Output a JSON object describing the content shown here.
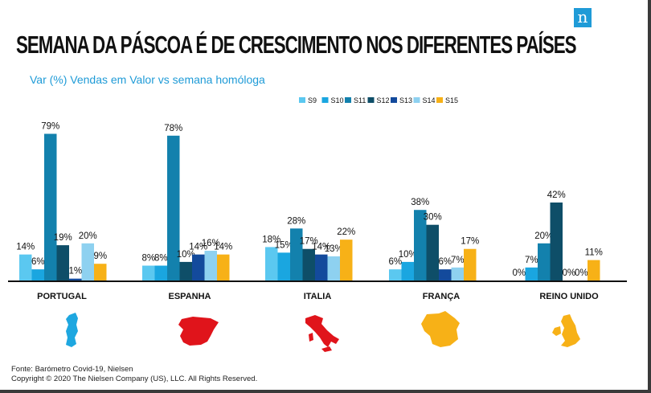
{
  "header": {
    "title": "SEMANA DA PÁSCOA É DE CRESCIMENTO NOS DIFERENTES PAÍSES",
    "subtitle": "Var (%) Vendas em Valor vs semana homóloga",
    "logo_letter": "n"
  },
  "footer": {
    "source": "Fonte: Barómetro Covid-19, Nielsen",
    "copyright": "Copyright © 2020 The Nielsen Company (US), LLC. All Rights Reserved."
  },
  "colors": {
    "S9": "#5bc8f0",
    "S10": "#1aa6e0",
    "S11": "#1381ad",
    "S12": "#0e4e68",
    "S13": "#134a9c",
    "S14": "#8ed1f0",
    "S15": "#f7b117",
    "map_portugal": "#1ea7e0",
    "map_espanha": "#e0141b",
    "map_italia": "#e0141b",
    "map_franca": "#f7b117",
    "map_reino_unido": "#f7b117"
  },
  "chart_data": {
    "type": "bar",
    "categories": [
      "PORTUGAL",
      "ESPANHA",
      "ITALIA",
      "FRANÇA",
      "REINO UNIDO"
    ],
    "series": [
      {
        "name": "S9",
        "values": [
          14,
          8,
          18,
          6,
          0
        ],
        "labels": [
          "14%",
          "8%",
          "18%",
          "6%",
          "0%"
        ]
      },
      {
        "name": "S10",
        "values": [
          6,
          8,
          15,
          10,
          7
        ],
        "labels": [
          "6%",
          "8%",
          "15%",
          "10%",
          "7%"
        ]
      },
      {
        "name": "S11",
        "values": [
          79,
          78,
          28,
          38,
          20
        ],
        "labels": [
          "79%",
          "78%",
          "28%",
          "38%",
          "20%"
        ]
      },
      {
        "name": "S12",
        "values": [
          19,
          10,
          17,
          30,
          42
        ],
        "labels": [
          "19%",
          "10%",
          "17%",
          "30%",
          "42%"
        ]
      },
      {
        "name": "S13",
        "values": [
          1,
          14,
          14,
          6,
          0
        ],
        "labels": [
          "1%",
          "14%",
          "14%",
          "6%",
          "0%"
        ]
      },
      {
        "name": "S14",
        "values": [
          20,
          16,
          13,
          7,
          0
        ],
        "labels": [
          "20%",
          "16%",
          "13%",
          "7%",
          "0%"
        ]
      },
      {
        "name": "S15",
        "values": [
          9,
          14,
          22,
          17,
          11
        ],
        "labels": [
          "9%",
          "14%",
          "22%",
          "17%",
          "11%"
        ]
      }
    ],
    "title": "SEMANA DA PÁSCOA É DE CRESCIMENTO NOS DIFERENTES PAÍSES",
    "subtitle": "Var (%) Vendas em Valor vs semana homóloga",
    "ylim": [
      0,
      85
    ],
    "legend_position": "top-right",
    "grid": false
  }
}
